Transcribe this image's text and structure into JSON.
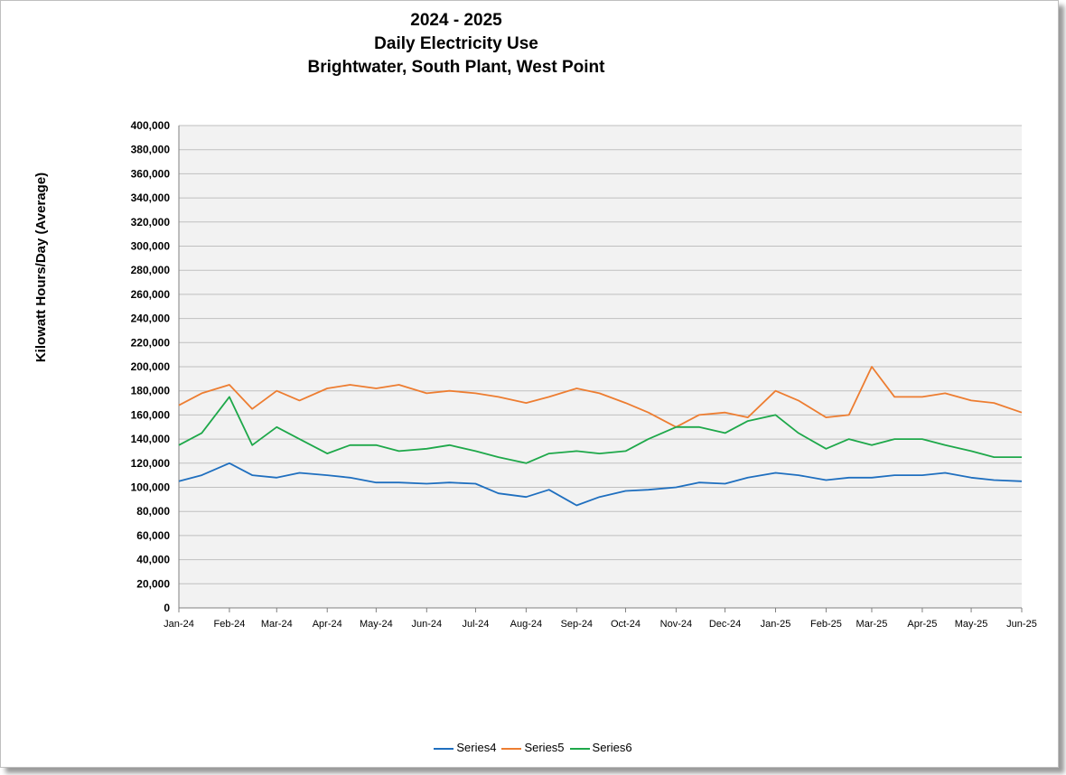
{
  "title_lines": [
    "2024 - 2025",
    "Daily Electricity Use",
    "Brightwater, South Plant, West Point"
  ],
  "chart_data": {
    "type": "line",
    "title": "2024 - 2025 Daily Electricity Use Brightwater, South Plant, West Point",
    "xlabel": "",
    "ylabel": "Kilowatt Hours/Day (Average)",
    "ylim": [
      0,
      400000
    ],
    "y_ticks": [
      "400,000",
      "380,000",
      "360,000",
      "340,000",
      "320,000",
      "300,000",
      "280,000",
      "260,000",
      "240,000",
      "220,000",
      "200,000",
      "180,000",
      "160,000",
      "140,000",
      "120,000",
      "100,000",
      "80,000",
      "60,000",
      "40,000",
      "20,000",
      "0"
    ],
    "x_ticks": [
      "Jan-24",
      "Feb-24",
      "Mar-24",
      "Apr-24",
      "May-24",
      "Jun-24",
      "Jul-24",
      "Aug-24",
      "Sep-24",
      "Oct-24",
      "Nov-24",
      "Dec-24",
      "Jan-25",
      "Feb-25",
      "Mar-25",
      "Apr-25",
      "May-25",
      "Jun-25"
    ],
    "x": [
      "2024-01-01",
      "2024-01-15",
      "2024-02-01",
      "2024-02-15",
      "2024-03-01",
      "2024-03-15",
      "2024-04-01",
      "2024-04-15",
      "2024-05-01",
      "2024-05-15",
      "2024-06-01",
      "2024-06-15",
      "2024-07-01",
      "2024-07-15",
      "2024-08-01",
      "2024-08-15",
      "2024-09-01",
      "2024-09-15",
      "2024-10-01",
      "2024-10-15",
      "2024-11-01",
      "2024-11-15",
      "2024-12-01",
      "2024-12-15",
      "2025-01-01",
      "2025-01-15",
      "2025-02-01",
      "2025-02-15",
      "2025-03-01",
      "2025-03-15",
      "2025-04-01",
      "2025-04-15",
      "2025-05-01",
      "2025-05-15",
      "2025-06-01"
    ],
    "grid": true,
    "legend": "bottom",
    "series": [
      {
        "name": "Series4",
        "color": "#1f6fbf",
        "values": [
          105000,
          110000,
          120000,
          110000,
          108000,
          112000,
          110000,
          108000,
          104000,
          104000,
          103000,
          104000,
          103000,
          95000,
          92000,
          98000,
          85000,
          92000,
          97000,
          98000,
          100000,
          104000,
          103000,
          108000,
          112000,
          110000,
          106000,
          108000,
          108000,
          110000,
          110000,
          112000,
          108000,
          106000,
          105000
        ]
      },
      {
        "name": "Series5",
        "color": "#ed7d31",
        "values": [
          168000,
          178000,
          185000,
          165000,
          180000,
          172000,
          182000,
          185000,
          182000,
          185000,
          178000,
          180000,
          178000,
          175000,
          170000,
          175000,
          182000,
          178000,
          170000,
          162000,
          150000,
          160000,
          162000,
          158000,
          180000,
          172000,
          158000,
          160000,
          200000,
          175000,
          175000,
          178000,
          172000,
          170000,
          162000
        ]
      },
      {
        "name": "Series6",
        "color": "#1ea84a",
        "values": [
          135000,
          145000,
          175000,
          135000,
          150000,
          140000,
          128000,
          135000,
          135000,
          130000,
          132000,
          135000,
          130000,
          125000,
          120000,
          128000,
          130000,
          128000,
          130000,
          140000,
          150000,
          150000,
          145000,
          155000,
          160000,
          145000,
          132000,
          140000,
          135000,
          140000,
          140000,
          135000,
          130000,
          125000,
          125000
        ]
      }
    ]
  }
}
